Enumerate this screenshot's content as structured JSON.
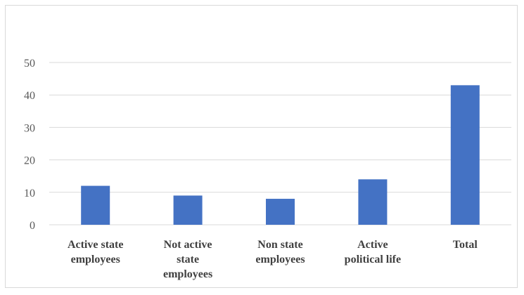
{
  "chart_data": {
    "type": "bar",
    "categories": [
      [
        "Active state",
        "employees"
      ],
      [
        "Not active",
        "state",
        "employees"
      ],
      [
        "Non state",
        "employees"
      ],
      [
        "Active",
        "political life"
      ],
      [
        "Total"
      ]
    ],
    "values": [
      12,
      9,
      8,
      14,
      43
    ],
    "ylim": [
      0,
      50
    ],
    "yticks": [
      0,
      10,
      20,
      30,
      40,
      50
    ],
    "grid": true,
    "legend": "none",
    "bar_color": "#4472C4",
    "grid_color": "#d9d9d9",
    "title": "",
    "xlabel": "",
    "ylabel": ""
  }
}
